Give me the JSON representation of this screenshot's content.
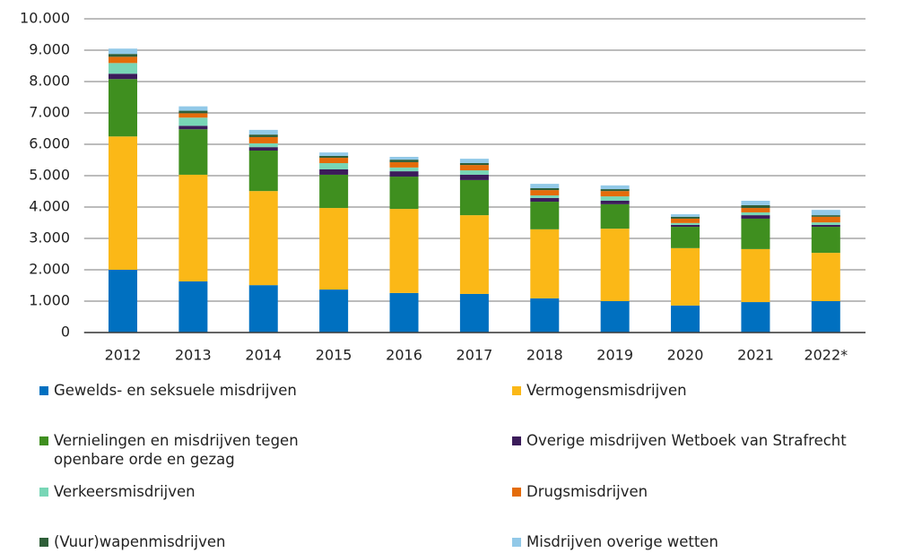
{
  "chart_data": {
    "type": "stacked-bar",
    "categories": [
      "2012",
      "2013",
      "2014",
      "2015",
      "2016",
      "2017",
      "2018",
      "2019",
      "2020",
      "2021",
      "2022*"
    ],
    "series": [
      {
        "name": "Gewelds- en seksuele misdrijven",
        "color": "#0070c0",
        "values": [
          2000,
          1630,
          1510,
          1370,
          1260,
          1230,
          1090,
          1000,
          860,
          970,
          1000
        ]
      },
      {
        "name": "Vermogensmisdrijven",
        "color": "#fbb817",
        "values": [
          4250,
          3400,
          3000,
          2600,
          2680,
          2510,
          2200,
          2310,
          1830,
          1690,
          1540
        ]
      },
      {
        "name": "Vernielingen en misdrijven tegen openbare orde en gezag",
        "color": "#3f8f1f",
        "values": [
          1830,
          1450,
          1290,
          1060,
          1030,
          1120,
          880,
          780,
          680,
          970,
          830
        ]
      },
      {
        "name": "Overige misdrijven Wetboek van Strafrecht",
        "color": "#3b1c5a",
        "values": [
          170,
          110,
          110,
          170,
          170,
          170,
          120,
          110,
          60,
          110,
          60
        ]
      },
      {
        "name": "Verkeersmisdrijven",
        "color": "#78d6b6",
        "values": [
          340,
          260,
          120,
          200,
          120,
          140,
          80,
          140,
          60,
          90,
          80
        ]
      },
      {
        "name": "Drugsmisdrijven",
        "color": "#e46c0a",
        "values": [
          200,
          140,
          200,
          170,
          170,
          170,
          170,
          170,
          140,
          140,
          180
        ]
      },
      {
        "name": "(Vuur)wapenmisdrijven",
        "color": "#2e5e38",
        "values": [
          90,
          80,
          80,
          60,
          80,
          60,
          60,
          60,
          60,
          90,
          50
        ]
      },
      {
        "name": "Misdrijven overige wetten",
        "color": "#92c9e8",
        "values": [
          170,
          140,
          150,
          110,
          90,
          140,
          140,
          120,
          80,
          140,
          170
        ]
      }
    ],
    "ylim": [
      0,
      10000
    ],
    "yticks": [
      0,
      {
        "value": 1000,
        "label": "1.000"
      },
      {
        "value": 2000,
        "label": "2.000"
      },
      {
        "value": 3000,
        "label": "3.000"
      },
      {
        "value": 4000,
        "label": "4.000"
      },
      {
        "value": 5000,
        "label": "5.000"
      },
      {
        "value": 6000,
        "label": "6.000"
      },
      {
        "value": 7000,
        "label": "7.000"
      },
      {
        "value": 8000,
        "label": "8.000"
      },
      {
        "value": 9000,
        "label": "9.000"
      },
      {
        "value": 10000,
        "label": "10.000"
      }
    ],
    "grid": true
  }
}
